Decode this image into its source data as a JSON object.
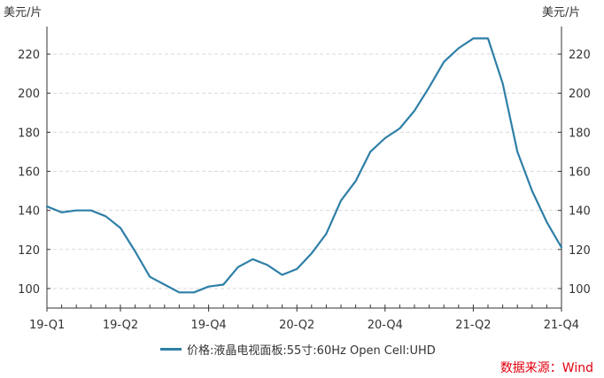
{
  "chart_data": {
    "type": "line",
    "y_unit_left": "美元/片",
    "y_unit_right": "美元/片",
    "yticks": [
      100,
      120,
      140,
      160,
      180,
      200,
      220
    ],
    "ylim": [
      90,
      235
    ],
    "x_tick_labels": [
      {
        "label": "19-Q1",
        "index": 0
      },
      {
        "label": "19-Q2",
        "index": 5
      },
      {
        "label": "19-Q4",
        "index": 11
      },
      {
        "label": "20-Q2",
        "index": 17
      },
      {
        "label": "20-Q4",
        "index": 23
      },
      {
        "label": "21-Q2",
        "index": 29
      },
      {
        "label": "21-Q4",
        "index": 35
      }
    ],
    "grid": "horizontal-dashed",
    "series": [
      {
        "name": "价格:液晶电视面板:55寸:60Hz Open Cell:UHD",
        "color": "#2e7fa7",
        "values": [
          142,
          139,
          140,
          140,
          137,
          131,
          119,
          106,
          102,
          98,
          98,
          101,
          102,
          111,
          115,
          112,
          107,
          110,
          118,
          128,
          145,
          155,
          170,
          177,
          182,
          191,
          203,
          216,
          223,
          228,
          228,
          205,
          170,
          150,
          134,
          121
        ]
      }
    ],
    "legend_position": "bottom",
    "source_note": "数据来源：Wind"
  }
}
